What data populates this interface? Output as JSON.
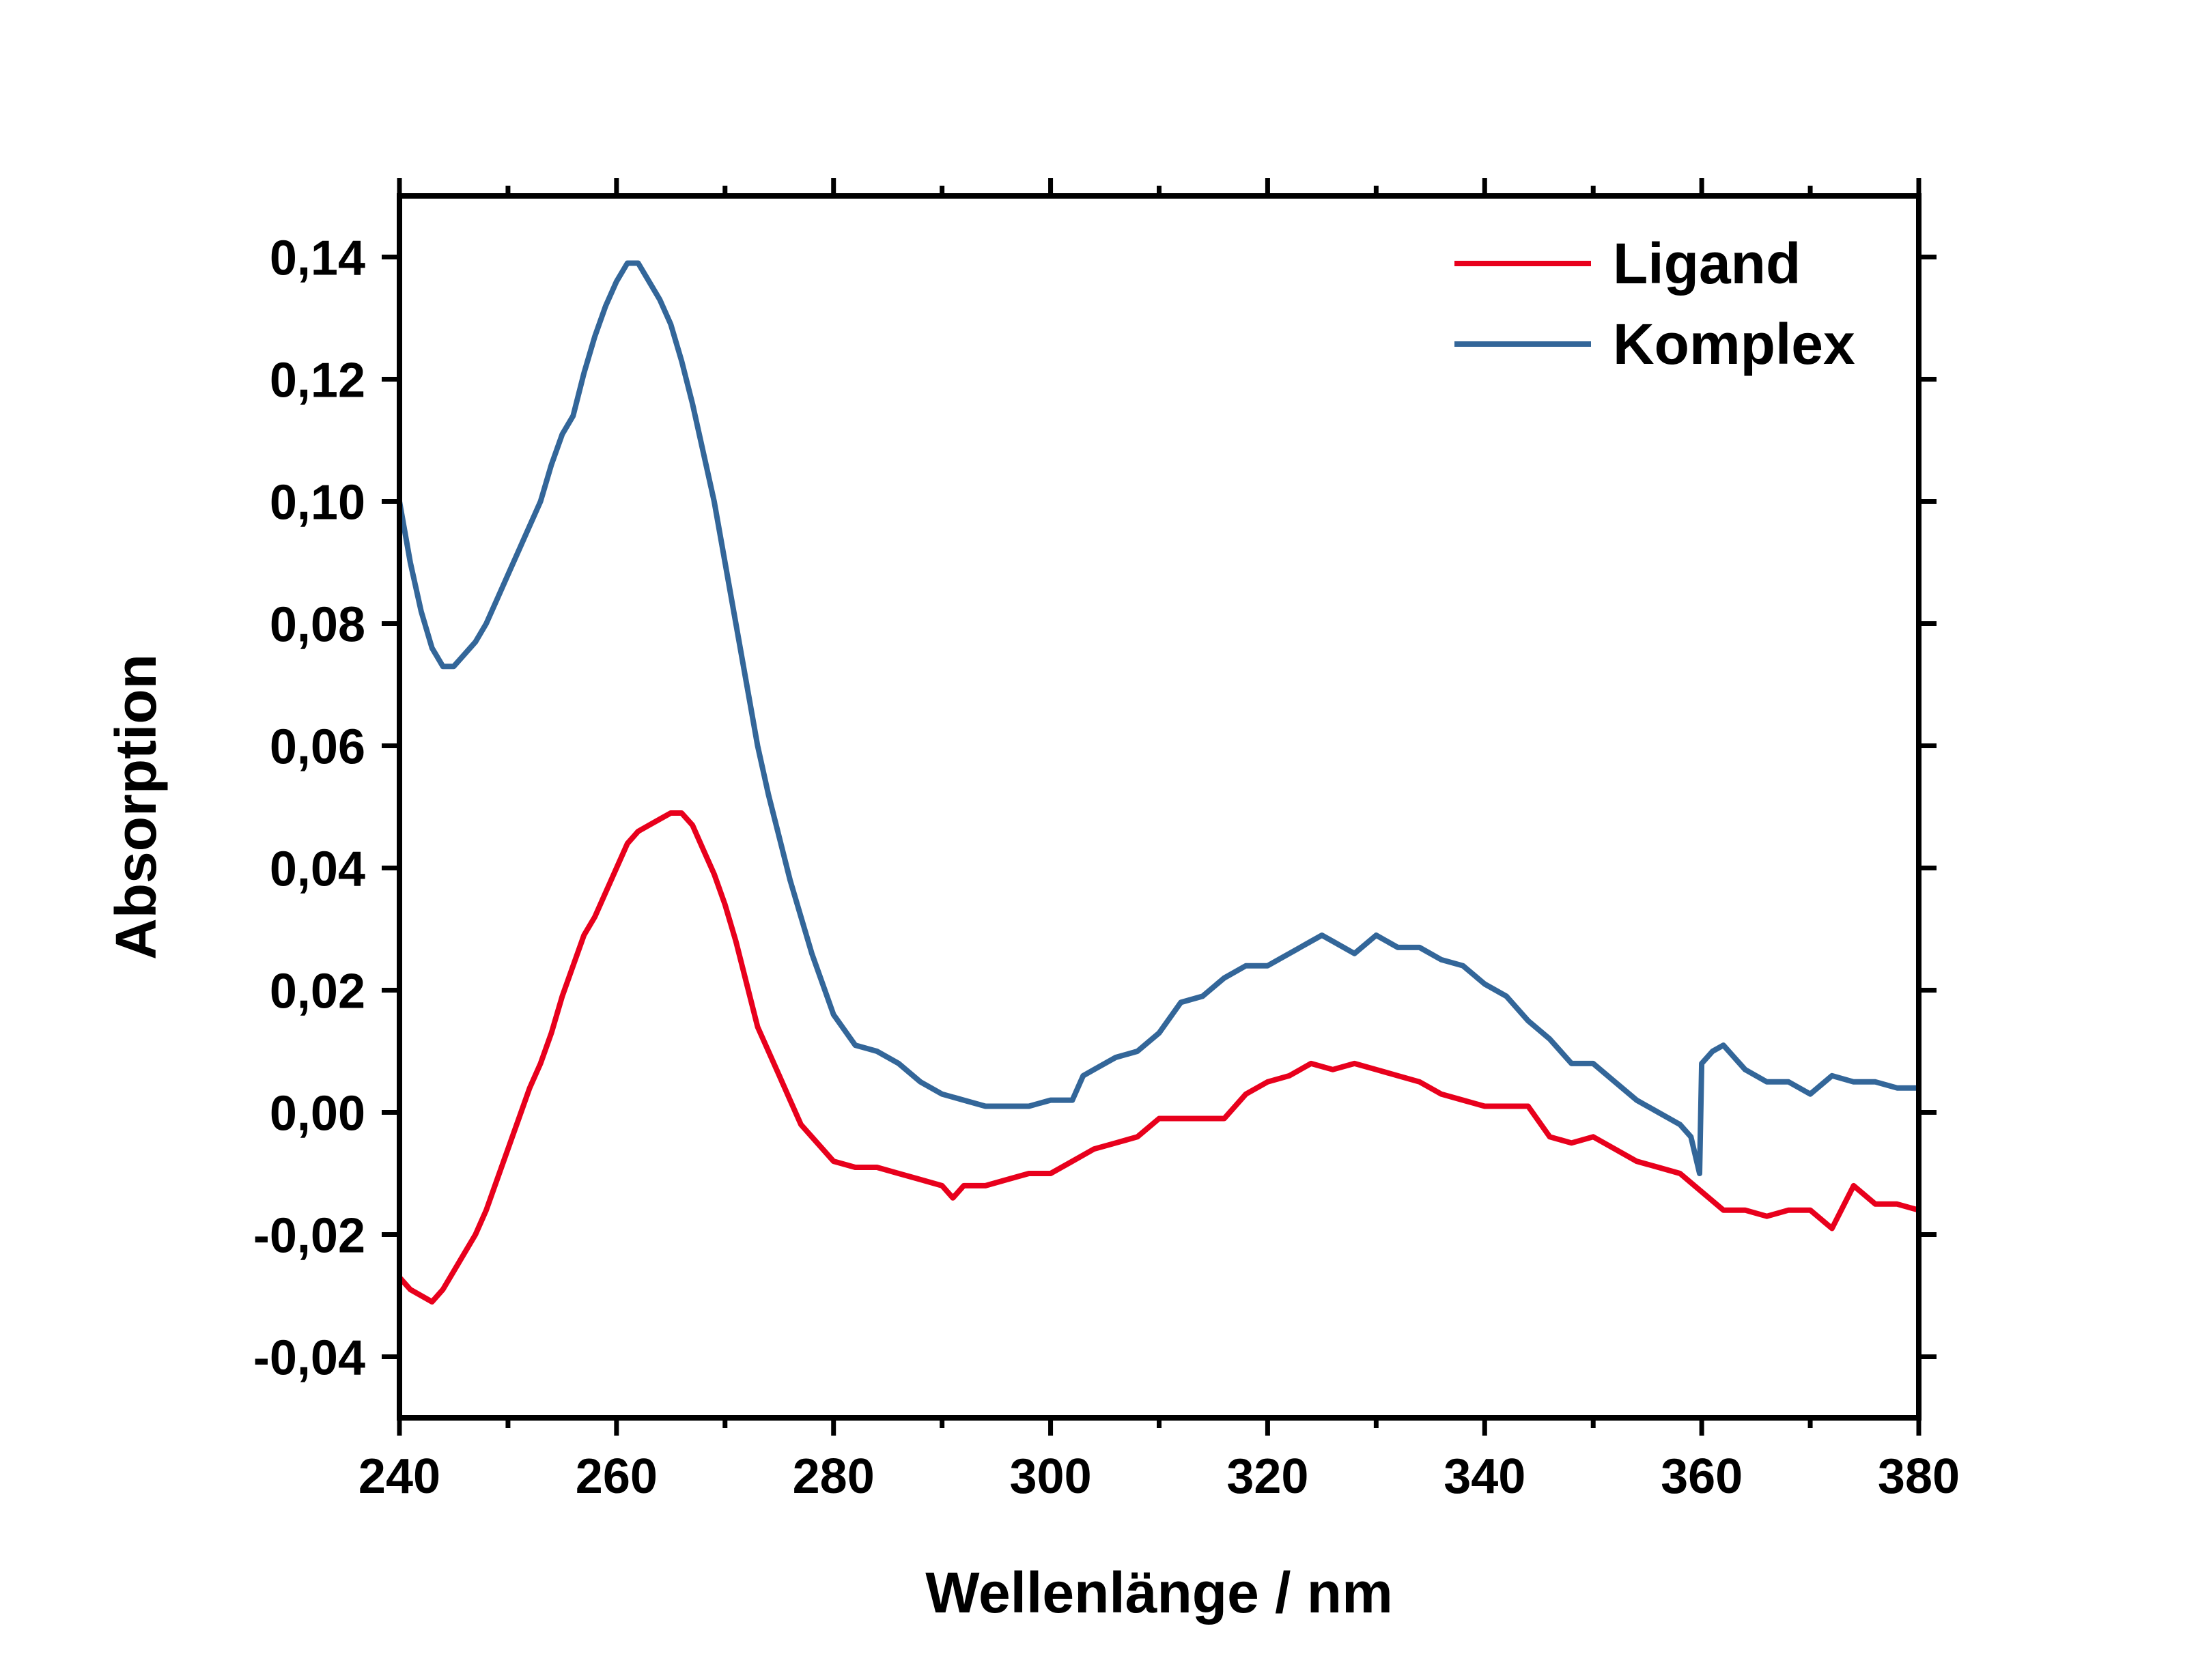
{
  "chart_data": {
    "type": "line",
    "xlabel": "Wellenlänge / nm",
    "ylabel": "Absorption",
    "xlim": [
      240,
      380
    ],
    "ylim": [
      -0.05,
      0.15
    ],
    "x_ticks": [
      240,
      260,
      280,
      300,
      320,
      340,
      360,
      380
    ],
    "x_tick_labels": [
      "240",
      "260",
      "280",
      "300",
      "320",
      "340",
      "360",
      "380"
    ],
    "y_ticks": [
      -0.04,
      -0.02,
      0.0,
      0.02,
      0.04,
      0.06,
      0.08,
      0.1,
      0.12,
      0.14
    ],
    "y_tick_labels": [
      "-0,04",
      "-0,02",
      "0,00",
      "0,02",
      "0,04",
      "0,06",
      "0,08",
      "0,10",
      "0,12",
      "0,14"
    ],
    "grid": false,
    "legend_position": "top-right",
    "series": [
      {
        "name": "Ligand",
        "color": "#e8001c",
        "points": [
          [
            240,
            -0.027
          ],
          [
            241,
            -0.029
          ],
          [
            242,
            -0.03
          ],
          [
            243,
            -0.031
          ],
          [
            244,
            -0.029
          ],
          [
            245,
            -0.026
          ],
          [
            246,
            -0.023
          ],
          [
            247,
            -0.02
          ],
          [
            248,
            -0.016
          ],
          [
            249,
            -0.011
          ],
          [
            250,
            -0.006
          ],
          [
            251,
            -0.001
          ],
          [
            252,
            0.004
          ],
          [
            253,
            0.008
          ],
          [
            254,
            0.013
          ],
          [
            255,
            0.019
          ],
          [
            256,
            0.024
          ],
          [
            257,
            0.029
          ],
          [
            258,
            0.032
          ],
          [
            259,
            0.036
          ],
          [
            260,
            0.04
          ],
          [
            261,
            0.044
          ],
          [
            262,
            0.046
          ],
          [
            263,
            0.047
          ],
          [
            264,
            0.048
          ],
          [
            265,
            0.049
          ],
          [
            266,
            0.049
          ],
          [
            267,
            0.047
          ],
          [
            268,
            0.043
          ],
          [
            269,
            0.039
          ],
          [
            270,
            0.034
          ],
          [
            271,
            0.028
          ],
          [
            272,
            0.021
          ],
          [
            273,
            0.014
          ],
          [
            274,
            0.01
          ],
          [
            275,
            0.006
          ],
          [
            276,
            0.002
          ],
          [
            277,
            -0.002
          ],
          [
            278,
            -0.004
          ],
          [
            279,
            -0.006
          ],
          [
            280,
            -0.008
          ],
          [
            282,
            -0.009
          ],
          [
            284,
            -0.009
          ],
          [
            286,
            -0.01
          ],
          [
            288,
            -0.011
          ],
          [
            290,
            -0.012
          ],
          [
            291,
            -0.014
          ],
          [
            292,
            -0.012
          ],
          [
            294,
            -0.012
          ],
          [
            296,
            -0.011
          ],
          [
            298,
            -0.01
          ],
          [
            300,
            -0.01
          ],
          [
            302,
            -0.008
          ],
          [
            304,
            -0.006
          ],
          [
            306,
            -0.005
          ],
          [
            308,
            -0.004
          ],
          [
            310,
            -0.001
          ],
          [
            312,
            -0.001
          ],
          [
            314,
            -0.001
          ],
          [
            316,
            -0.001
          ],
          [
            318,
            0.003
          ],
          [
            320,
            0.005
          ],
          [
            322,
            0.006
          ],
          [
            324,
            0.008
          ],
          [
            326,
            0.007
          ],
          [
            328,
            0.008
          ],
          [
            330,
            0.007
          ],
          [
            332,
            0.006
          ],
          [
            334,
            0.005
          ],
          [
            336,
            0.003
          ],
          [
            338,
            0.002
          ],
          [
            340,
            0.001
          ],
          [
            342,
            0.001
          ],
          [
            344,
            0.001
          ],
          [
            346,
            -0.004
          ],
          [
            348,
            -0.005
          ],
          [
            350,
            -0.004
          ],
          [
            352,
            -0.006
          ],
          [
            354,
            -0.008
          ],
          [
            356,
            -0.009
          ],
          [
            358,
            -0.01
          ],
          [
            360,
            -0.013
          ],
          [
            362,
            -0.016
          ],
          [
            364,
            -0.016
          ],
          [
            366,
            -0.017
          ],
          [
            368,
            -0.016
          ],
          [
            370,
            -0.016
          ],
          [
            372,
            -0.019
          ],
          [
            374,
            -0.012
          ],
          [
            376,
            -0.015
          ],
          [
            378,
            -0.015
          ],
          [
            380,
            -0.016
          ]
        ]
      },
      {
        "name": "Komplex",
        "color": "#336699",
        "points": [
          [
            240,
            0.1
          ],
          [
            241,
            0.09
          ],
          [
            242,
            0.082
          ],
          [
            243,
            0.076
          ],
          [
            244,
            0.073
          ],
          [
            245,
            0.073
          ],
          [
            246,
            0.075
          ],
          [
            247,
            0.077
          ],
          [
            248,
            0.08
          ],
          [
            249,
            0.084
          ],
          [
            250,
            0.088
          ],
          [
            251,
            0.092
          ],
          [
            252,
            0.096
          ],
          [
            253,
            0.1
          ],
          [
            254,
            0.106
          ],
          [
            255,
            0.111
          ],
          [
            256,
            0.114
          ],
          [
            257,
            0.121
          ],
          [
            258,
            0.127
          ],
          [
            259,
            0.132
          ],
          [
            260,
            0.136
          ],
          [
            261,
            0.139
          ],
          [
            262,
            0.139
          ],
          [
            263,
            0.136
          ],
          [
            264,
            0.133
          ],
          [
            265,
            0.129
          ],
          [
            266,
            0.123
          ],
          [
            267,
            0.116
          ],
          [
            268,
            0.108
          ],
          [
            269,
            0.1
          ],
          [
            270,
            0.09
          ],
          [
            271,
            0.08
          ],
          [
            272,
            0.07
          ],
          [
            273,
            0.06
          ],
          [
            274,
            0.052
          ],
          [
            275,
            0.045
          ],
          [
            276,
            0.038
          ],
          [
            277,
            0.032
          ],
          [
            278,
            0.026
          ],
          [
            279,
            0.021
          ],
          [
            280,
            0.016
          ],
          [
            282,
            0.011
          ],
          [
            284,
            0.01
          ],
          [
            286,
            0.008
          ],
          [
            288,
            0.005
          ],
          [
            290,
            0.003
          ],
          [
            292,
            0.002
          ],
          [
            294,
            0.001
          ],
          [
            296,
            0.001
          ],
          [
            298,
            0.001
          ],
          [
            300,
            0.002
          ],
          [
            302,
            0.002
          ],
          [
            303,
            0.006
          ],
          [
            304,
            0.007
          ],
          [
            306,
            0.009
          ],
          [
            308,
            0.01
          ],
          [
            310,
            0.013
          ],
          [
            312,
            0.018
          ],
          [
            314,
            0.019
          ],
          [
            316,
            0.022
          ],
          [
            318,
            0.024
          ],
          [
            320,
            0.024
          ],
          [
            322,
            0.026
          ],
          [
            324,
            0.028
          ],
          [
            325,
            0.029
          ],
          [
            326,
            0.028
          ],
          [
            328,
            0.026
          ],
          [
            330,
            0.029
          ],
          [
            332,
            0.027
          ],
          [
            334,
            0.027
          ],
          [
            336,
            0.025
          ],
          [
            338,
            0.024
          ],
          [
            340,
            0.021
          ],
          [
            342,
            0.019
          ],
          [
            344,
            0.015
          ],
          [
            346,
            0.012
          ],
          [
            348,
            0.008
          ],
          [
            350,
            0.008
          ],
          [
            352,
            0.005
          ],
          [
            354,
            0.002
          ],
          [
            356,
            0.0
          ],
          [
            358,
            -0.002
          ],
          [
            359,
            -0.004
          ],
          [
            359.8,
            -0.01
          ],
          [
            360,
            0.008
          ],
          [
            361,
            0.01
          ],
          [
            362,
            0.011
          ],
          [
            363,
            0.009
          ],
          [
            364,
            0.007
          ],
          [
            366,
            0.005
          ],
          [
            368,
            0.005
          ],
          [
            370,
            0.003
          ],
          [
            372,
            0.006
          ],
          [
            374,
            0.005
          ],
          [
            376,
            0.005
          ],
          [
            378,
            0.004
          ],
          [
            380,
            0.004
          ]
        ]
      }
    ]
  }
}
